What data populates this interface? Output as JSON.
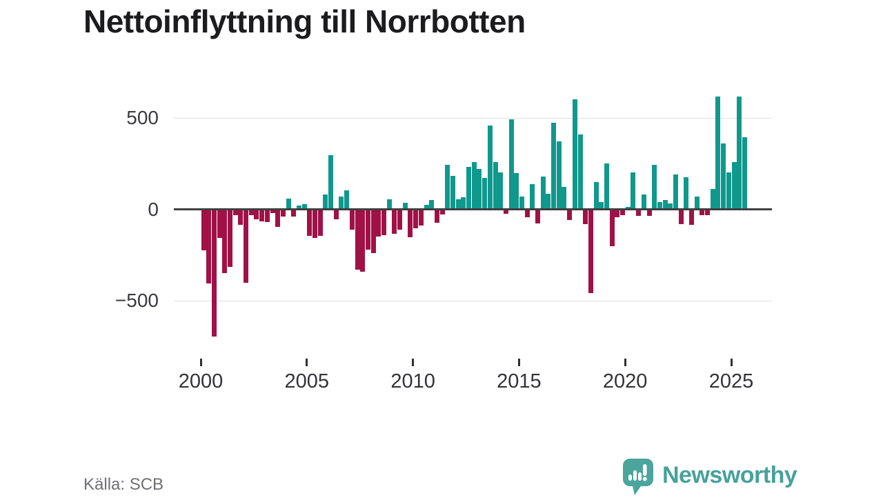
{
  "header": {
    "title": "Nettoinflyttning till Norrbotten"
  },
  "footer": {
    "source": "Källa: SCB",
    "brand": "Newsworthy"
  },
  "chart_data": {
    "type": "bar",
    "title": "Nettoinflyttning till Norrbotten",
    "xlabel": "",
    "ylabel": "",
    "frequency": "quarterly",
    "x_start": "2000-Q1",
    "x_end": "2025-Q3",
    "ylim": [
      -750,
      660
    ],
    "grid": "horizontal",
    "y_ticks": [
      {
        "label": "500",
        "value": 500
      },
      {
        "label": "0",
        "value": 0
      },
      {
        "label": "−500",
        "value": -500
      }
    ],
    "x_ticks": [
      {
        "label": "2000",
        "year": 2000
      },
      {
        "label": "2005",
        "year": 2005
      },
      {
        "label": "2010",
        "year": 2010
      },
      {
        "label": "2015",
        "year": 2015
      },
      {
        "label": "2020",
        "year": 2020
      },
      {
        "label": "2025",
        "year": 2025
      }
    ],
    "colors": {
      "positive": "#10988d",
      "negative": "#a01147"
    },
    "values": [
      -225,
      -405,
      -695,
      -155,
      -350,
      -315,
      -30,
      -85,
      -400,
      -30,
      -55,
      -65,
      -70,
      -20,
      -95,
      -40,
      60,
      -40,
      20,
      30,
      -145,
      -155,
      -145,
      82,
      295,
      -55,
      70,
      103,
      -112,
      -330,
      -340,
      -222,
      -240,
      -150,
      -140,
      54,
      -132,
      -113,
      35,
      -151,
      -105,
      -90,
      25,
      51,
      -75,
      -27,
      245,
      185,
      55,
      66,
      232,
      259,
      222,
      171,
      457,
      260,
      202,
      -23,
      491,
      197,
      70,
      -42,
      137,
      -76,
      180,
      84,
      473,
      371,
      124,
      -60,
      601,
      408,
      -80,
      -460,
      148,
      38,
      252,
      -200,
      -45,
      -33,
      15,
      203,
      -37,
      82,
      -35,
      242,
      41,
      51,
      32,
      191,
      -80,
      176,
      -86,
      70,
      -32,
      -31,
      113,
      618,
      360,
      203,
      260,
      618,
      393
    ]
  }
}
